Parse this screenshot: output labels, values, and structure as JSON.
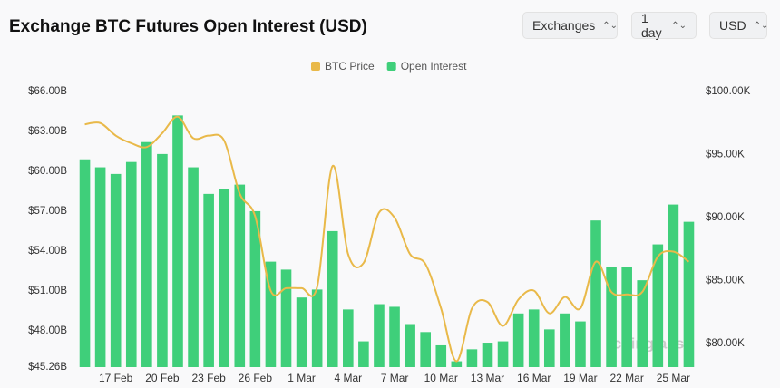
{
  "header": {
    "title": "Exchange BTC Futures Open Interest (USD)",
    "buttons": [
      "Exchanges",
      "1 day",
      "USD"
    ]
  },
  "chart_data": {
    "type": "bar-line",
    "watermark": "coinglass",
    "categories": [
      null,
      null,
      "17 Feb",
      null,
      null,
      "20 Feb",
      null,
      null,
      "23 Feb",
      null,
      null,
      "26 Feb",
      null,
      null,
      "1 Mar",
      null,
      null,
      "4 Mar",
      null,
      null,
      "7 Mar",
      null,
      null,
      "10 Mar",
      null,
      null,
      "13 Mar",
      null,
      null,
      "16 Mar",
      null,
      null,
      "19 Mar",
      null,
      null,
      "22 Mar",
      null,
      null,
      "25 Mar",
      null
    ],
    "series": [
      {
        "name": "BTC Price",
        "type": "line",
        "axis": "y2",
        "color": "#e9b949",
        "values": [
          97.4,
          97.5,
          96.5,
          95.9,
          95.6,
          96.7,
          98.0,
          96.3,
          96.5,
          96.1,
          91.9,
          90.1,
          84.2,
          84.4,
          84.4,
          84.5,
          94.1,
          87.1,
          86.4,
          90.4,
          90.0,
          87.1,
          86.3,
          82.8,
          78.6,
          82.8,
          83.3,
          81.4,
          83.5,
          84.2,
          82.4,
          83.7,
          82.8,
          86.5,
          84.1,
          83.9,
          84.1,
          86.9,
          87.3,
          86.5
        ]
      },
      {
        "name": "Open Interest",
        "type": "bar",
        "color": "#3fcf7a",
        "values": [
          60.9,
          60.3,
          59.8,
          60.7,
          62.2,
          61.3,
          64.2,
          60.3,
          58.3,
          58.7,
          59.0,
          57.0,
          53.2,
          52.6,
          50.5,
          51.1,
          55.5,
          49.6,
          47.2,
          50.0,
          49.8,
          48.5,
          47.9,
          46.9,
          45.7,
          46.6,
          47.1,
          47.2,
          49.3,
          49.6,
          48.1,
          49.3,
          48.7,
          56.3,
          52.8,
          52.8,
          51.8,
          54.5,
          57.5,
          56.2
        ]
      }
    ],
    "ylim": [
      45.26,
      66
    ],
    "yticks": [
      {
        "value": 45.26,
        "label": "$45.26B"
      },
      {
        "value": 48,
        "label": "$48.00B"
      },
      {
        "value": 51,
        "label": "$51.00B"
      },
      {
        "value": 54,
        "label": "$54.00B"
      },
      {
        "value": 57,
        "label": "$57.00B"
      },
      {
        "value": 60,
        "label": "$60.00B"
      },
      {
        "value": 63,
        "label": "$63.00B"
      },
      {
        "value": 66,
        "label": "$66.00B"
      }
    ],
    "y2lim": [
      78.13,
      100
    ],
    "y2ticks": [
      {
        "value": 80,
        "label": "$80.00K"
      },
      {
        "value": 85,
        "label": "$85.00K"
      },
      {
        "value": 90,
        "label": "$90.00K"
      },
      {
        "value": 95,
        "label": "$95.00K"
      },
      {
        "value": 100,
        "label": "$100.00K"
      }
    ],
    "grid": false,
    "legend": "top"
  }
}
